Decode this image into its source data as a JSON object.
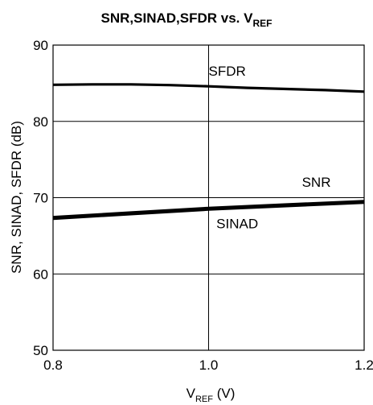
{
  "chart_data": {
    "type": "line",
    "title": {
      "main": "SNR,SINAD,SFDR vs. V",
      "sub": "REF"
    },
    "xlabel": {
      "prefix": "V",
      "sub": "REF",
      "suffix": " (V)"
    },
    "ylabel": "SNR, SINAD, SFDR (dB)",
    "xlim": [
      0.8,
      1.2
    ],
    "ylim": [
      50,
      90
    ],
    "x_ticks": [
      "0.8",
      "1.0",
      "1.2"
    ],
    "y_ticks": [
      "50",
      "60",
      "70",
      "80",
      "90"
    ],
    "grid": true,
    "series": [
      {
        "name": "SFDR",
        "x": [
          0.8,
          0.85,
          0.9,
          0.95,
          1.0,
          1.05,
          1.1,
          1.15,
          1.2
        ],
        "y": [
          84.8,
          84.85,
          84.85,
          84.75,
          84.6,
          84.4,
          84.25,
          84.1,
          83.9
        ],
        "color": "#000000"
      },
      {
        "name": "SNR",
        "x": [
          0.8,
          0.9,
          1.0,
          1.1,
          1.2
        ],
        "y": [
          67.45,
          68.05,
          68.65,
          69.1,
          69.55
        ],
        "color": "#000000"
      },
      {
        "name": "SINAD",
        "x": [
          0.8,
          0.9,
          1.0,
          1.1,
          1.2
        ],
        "y": [
          67.25,
          67.85,
          68.45,
          68.9,
          69.35
        ],
        "color": "#000000"
      }
    ],
    "annotations": [
      {
        "text": "SFDR",
        "x": 1.0,
        "y": 86.0
      },
      {
        "text": "SNR",
        "x": 1.12,
        "y": 71.4
      },
      {
        "text": "SINAD",
        "x": 1.01,
        "y": 66.0
      }
    ]
  }
}
